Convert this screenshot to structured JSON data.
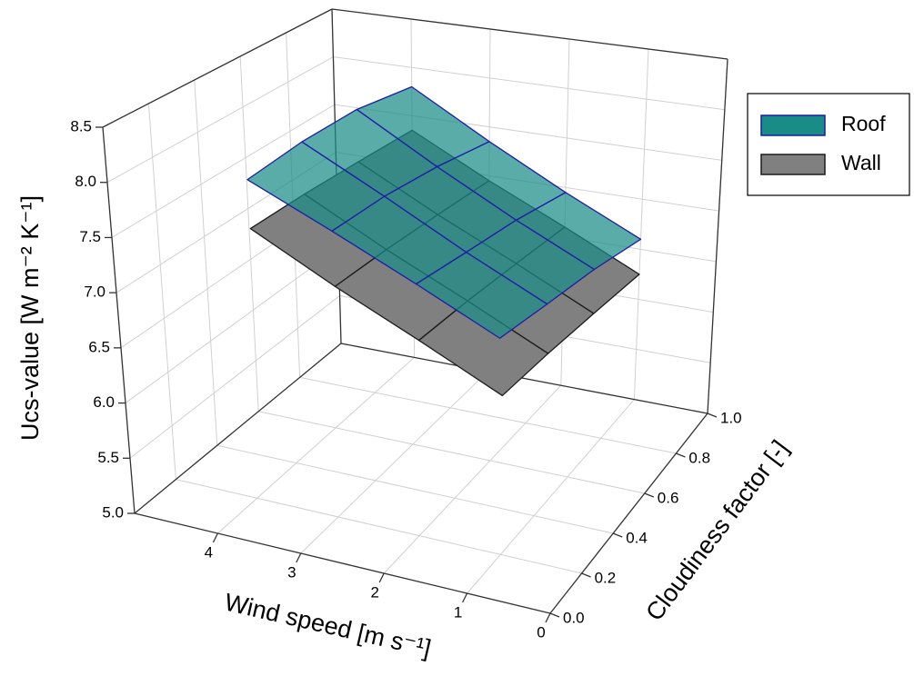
{
  "chart_data": {
    "type": "surface3d",
    "xlabel": "Wind speed [m s⁻¹]",
    "ylabel": "Cloudiness factor [-]",
    "zlabel": "Ucs-value [W m⁻² K⁻¹]",
    "xlim": [
      0,
      5
    ],
    "xticks": [
      0,
      1,
      2,
      3,
      4
    ],
    "ylim": [
      0,
      1
    ],
    "yticks": [
      {
        "value": 0,
        "label": "0.0"
      },
      0.2,
      0.4,
      0.6,
      0.8,
      {
        "value": 1,
        "label": "1.0"
      }
    ],
    "zlim": [
      5,
      8.5
    ],
    "zticks": [
      {
        "value": 5,
        "label": "5.0"
      },
      5.5,
      {
        "value": 6,
        "label": "6.0"
      },
      6.5,
      {
        "value": 7,
        "label": "7.0"
      },
      7.5,
      {
        "value": 8,
        "label": "8.0"
      },
      8.5
    ],
    "grid": true,
    "legend": "upper right",
    "x": [
      1,
      2,
      3,
      4
    ],
    "y": [
      0.25,
      0.5,
      0.75,
      1.0
    ],
    "series": [
      {
        "name": "Wall",
        "color": "#808080",
        "edgecolor": "#1a1a1a",
        "opacity": 1,
        "values": [
          [
            6.3,
            6.65,
            7.0,
            7.4
          ],
          [
            6.3,
            6.65,
            7.0,
            7.4
          ],
          [
            6.28,
            6.63,
            6.98,
            7.38
          ],
          [
            6.25,
            6.6,
            6.95,
            7.35
          ]
        ]
      },
      {
        "name": "Roof",
        "color": "#1a8c88",
        "edgecolor": "#1c1ca8",
        "opacity": 0.72,
        "values": [
          [
            6.8,
            7.15,
            7.5,
            7.85
          ],
          [
            6.75,
            7.1,
            7.5,
            7.9
          ],
          [
            6.7,
            7.05,
            7.45,
            7.9
          ],
          [
            6.6,
            6.95,
            7.35,
            7.8
          ]
        ]
      }
    ]
  }
}
